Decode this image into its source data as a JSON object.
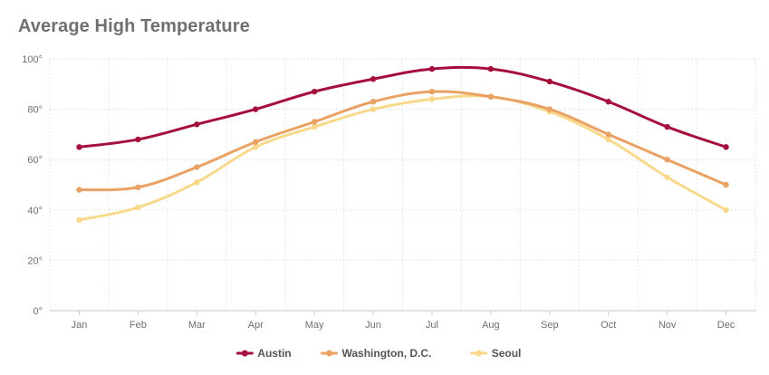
{
  "chart_data": {
    "type": "line",
    "title": "Average High Temperature",
    "categories": [
      "Jan",
      "Feb",
      "Mar",
      "Apr",
      "May",
      "Jun",
      "Jul",
      "Aug",
      "Sep",
      "Oct",
      "Nov",
      "Dec"
    ],
    "series": [
      {
        "name": "Austin",
        "color": "#a50f3c",
        "values": [
          65,
          68,
          74,
          80,
          87,
          92,
          96,
          96,
          91,
          83,
          73,
          65
        ]
      },
      {
        "name": "Washington, D.C.",
        "color": "#e9a263",
        "values": [
          48,
          49,
          57,
          67,
          75,
          83,
          87,
          85,
          80,
          70,
          60,
          50
        ]
      },
      {
        "name": "Seoul",
        "color": "#f8d98b",
        "values": [
          36,
          41,
          51,
          65,
          73,
          80,
          84,
          85,
          79,
          68,
          53,
          40
        ]
      }
    ],
    "ylim": [
      0,
      100
    ],
    "y_ticks": [
      0,
      20,
      40,
      60,
      80,
      100
    ],
    "y_tick_labels": [
      "0°",
      "20°",
      "40°",
      "60°",
      "80°",
      "100°"
    ],
    "grid": true,
    "legend_position": "bottom-center"
  }
}
